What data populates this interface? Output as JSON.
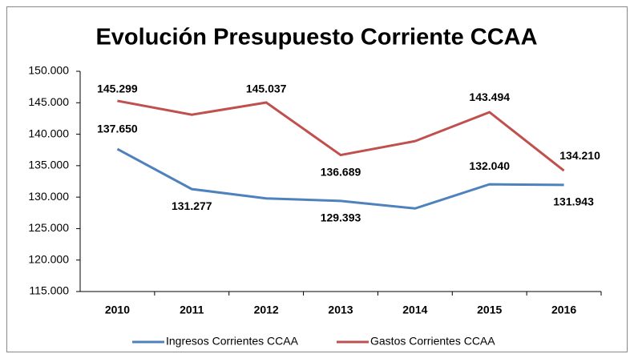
{
  "chart_data": {
    "type": "line",
    "title": "Evolución Presupuesto Corriente CCAA",
    "categories": [
      "2010",
      "2011",
      "2012",
      "2013",
      "2014",
      "2015",
      "2016"
    ],
    "series": [
      {
        "name": "Ingresos Corrientes CCAA",
        "color": "#4f81bd",
        "values": [
          137650,
          131277,
          129800,
          129393,
          128200,
          132040,
          131943
        ],
        "value_labels": [
          "137.650",
          "131.277",
          null,
          "129.393",
          null,
          "132.040",
          "131.943"
        ]
      },
      {
        "name": "Gastos Corrientes CCAA",
        "color": "#c0504d",
        "values": [
          145299,
          143100,
          145037,
          136689,
          138900,
          143494,
          134210
        ],
        "value_labels": [
          "145.299",
          null,
          "145.037",
          "136.689",
          null,
          "143.494",
          "134.210"
        ]
      }
    ],
    "ylim": [
      115000,
      150000
    ],
    "yticks": [
      {
        "value": 115000,
        "label": "115.000"
      },
      {
        "value": 120000,
        "label": "120.000"
      },
      {
        "value": 125000,
        "label": "125.000"
      },
      {
        "value": 130000,
        "label": "130.000"
      },
      {
        "value": 135000,
        "label": "135.000"
      },
      {
        "value": 140000,
        "label": "140.000"
      },
      {
        "value": 145000,
        "label": "145.000"
      },
      {
        "value": 150000,
        "label": "150.000"
      }
    ],
    "grid": false,
    "legend": "bottom"
  }
}
